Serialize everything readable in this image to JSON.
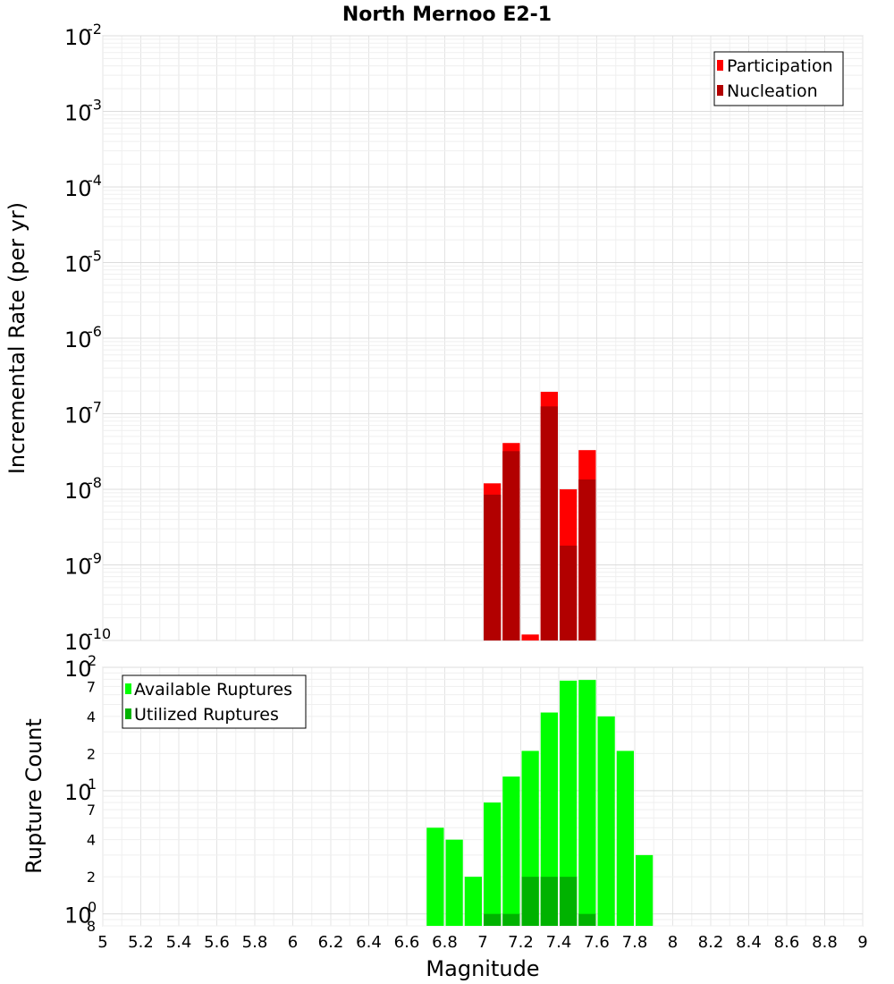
{
  "title": "North Mernoo E2-1",
  "chart_data": [
    {
      "type": "bar",
      "name": "rate-panel",
      "ylabel": "Incremental Rate (per yr)",
      "yscale": "log",
      "ylim": [
        1e-10,
        0.01
      ],
      "y_tick_bases": [
        "10",
        "10",
        "10",
        "10",
        "10",
        "10",
        "10",
        "10",
        "10"
      ],
      "y_tick_exponents": [
        "-10",
        "-9",
        "-8",
        "-7",
        "-6",
        "-5",
        "-4",
        "-3",
        "-2"
      ],
      "legend": {
        "placement": "top-right",
        "entries": [
          "Participation",
          "Nucleation"
        ]
      },
      "colors": {
        "Participation": "#ff0000",
        "Nucleation": "#b20000"
      },
      "x": [
        7.05,
        7.15,
        7.25,
        7.35,
        7.45,
        7.55
      ],
      "series": [
        {
          "name": "Participation",
          "values": [
            1.2e-08,
            4.1e-08,
            1.2e-10,
            1.95e-07,
            1e-08,
            3.3e-08
          ]
        },
        {
          "name": "Nucleation",
          "values": [
            8.5e-09,
            3.2e-08,
            1e-10,
            1.25e-07,
            1.8e-09,
            1.35e-08
          ]
        }
      ],
      "grid": true
    },
    {
      "type": "bar",
      "name": "count-panel",
      "ylabel": "Rupture Count",
      "yscale": "log",
      "ylim": [
        0.8,
        100
      ],
      "y_tick_bases": [
        "10",
        "10",
        "10"
      ],
      "y_tick_exponents": [
        "0",
        "1",
        "2"
      ],
      "y_minor_labels": [
        "8",
        "2",
        "4",
        "7",
        "2",
        "4",
        "7"
      ],
      "legend": {
        "placement": "top-left",
        "entries": [
          "Available Ruptures",
          "Utilized Ruptures"
        ]
      },
      "colors": {
        "Available Ruptures": "#00ff00",
        "Utilized Ruptures": "#00b200"
      },
      "x": [
        6.75,
        6.85,
        6.95,
        7.05,
        7.15,
        7.25,
        7.35,
        7.45,
        7.55,
        7.65,
        7.75,
        7.85
      ],
      "series": [
        {
          "name": "Available Ruptures",
          "values": [
            5,
            4,
            2,
            8,
            13,
            21,
            43,
            78,
            79,
            40,
            21,
            3
          ]
        },
        {
          "name": "Utilized Ruptures",
          "values": [
            0,
            0,
            0,
            1,
            1,
            2,
            2,
            2,
            1,
            0,
            0,
            0
          ]
        }
      ],
      "grid": true
    }
  ],
  "xaxis": {
    "label": "Magnitude",
    "range": [
      5,
      9
    ],
    "ticks": [
      "5",
      "5.2",
      "5.4",
      "5.6",
      "5.8",
      "6",
      "6.2",
      "6.4",
      "6.6",
      "6.8",
      "7",
      "7.2",
      "7.4",
      "7.6",
      "7.8",
      "8",
      "8.2",
      "8.4",
      "8.6",
      "8.8",
      "9"
    ]
  }
}
